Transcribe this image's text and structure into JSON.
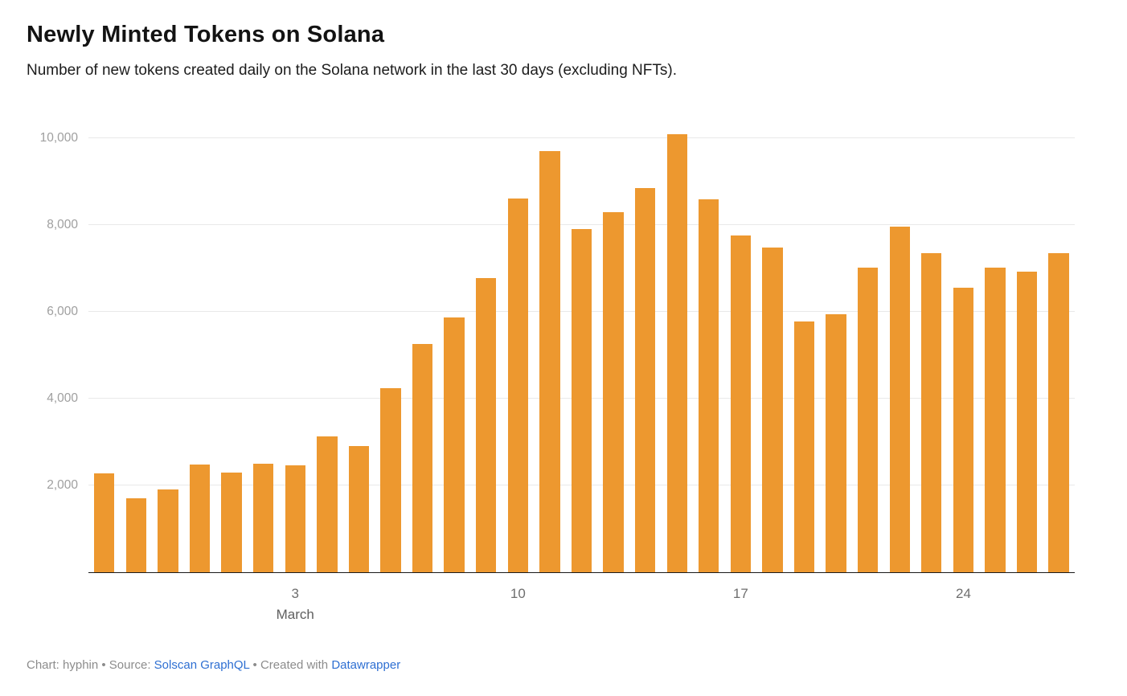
{
  "chart_data": {
    "type": "bar",
    "title": "Newly Minted Tokens on Solana",
    "subtitle": "Number of new tokens created daily on the Solana network in the last 30 days (excluding NFTs).",
    "x": [
      "Feb 26",
      "Feb 27",
      "Feb 28",
      "Feb 29",
      "Mar 1",
      "Mar 2",
      "Mar 3",
      "Mar 4",
      "Mar 5",
      "Mar 6",
      "Mar 7",
      "Mar 8",
      "Mar 9",
      "Mar 10",
      "Mar 11",
      "Mar 12",
      "Mar 13",
      "Mar 14",
      "Mar 15",
      "Mar 16",
      "Mar 17",
      "Mar 18",
      "Mar 19",
      "Mar 20",
      "Mar 21",
      "Mar 22",
      "Mar 23",
      "Mar 24",
      "Mar 25",
      "Mar 26",
      "Mar 27"
    ],
    "values": [
      2280,
      1700,
      1900,
      2470,
      2300,
      2500,
      2460,
      3120,
      2900,
      4230,
      5250,
      5870,
      6780,
      8610,
      9700,
      7910,
      8290,
      8850,
      10080,
      8590,
      7760,
      7480,
      5780,
      5950,
      7010,
      7960,
      7350,
      6560,
      7020,
      6930,
      7350
    ],
    "ylim": [
      0,
      10400
    ],
    "yticks": [
      2000,
      4000,
      6000,
      8000,
      10000
    ],
    "ytick_labels": [
      "2,000",
      "4,000",
      "6,000",
      "8,000",
      "10,000"
    ],
    "xticks": [
      {
        "index": 6,
        "label": "3",
        "sub": "March"
      },
      {
        "index": 13,
        "label": "10"
      },
      {
        "index": 20,
        "label": "17"
      },
      {
        "index": 27,
        "label": "24"
      }
    ],
    "xlabel": "",
    "ylabel": "",
    "grid": true,
    "legend": "none",
    "bar_color": "#ED982F"
  },
  "footer": {
    "prefix": "Chart: hyphin • Source: ",
    "source_link": "Solscan GraphQL",
    "middle": " • Created with ",
    "tool_link": "Datawrapper"
  }
}
